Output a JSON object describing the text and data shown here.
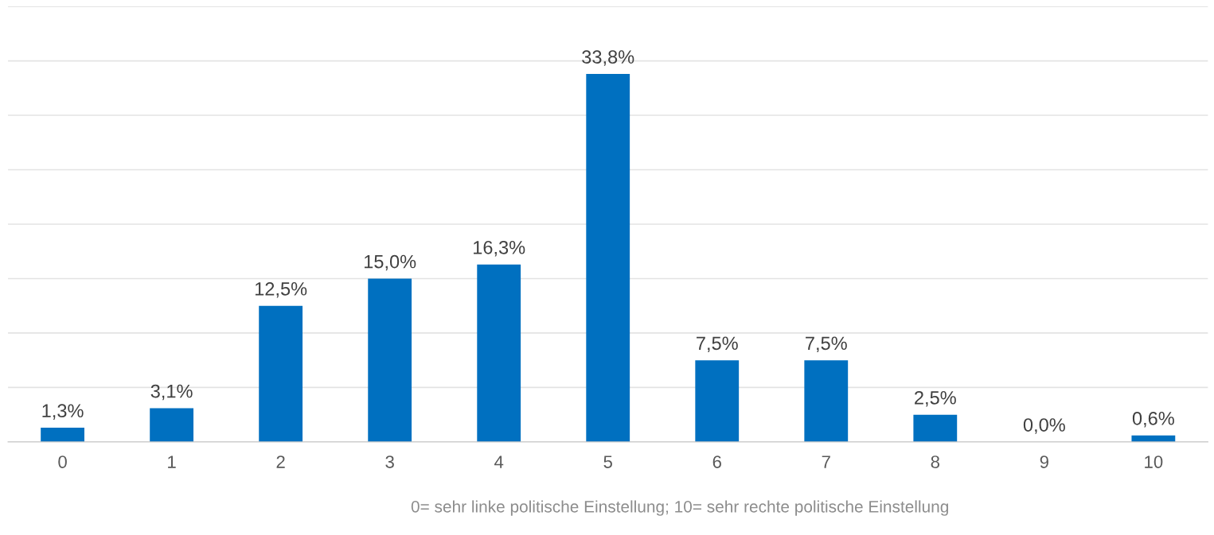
{
  "chart_data": {
    "type": "bar",
    "xlabel": "0= sehr linke politische Einstellung; 10= sehr rechte politische Einstellung",
    "categories": [
      "0",
      "1",
      "2",
      "3",
      "4",
      "5",
      "6",
      "7",
      "8",
      "9",
      "10"
    ],
    "values": [
      1.3,
      3.1,
      12.5,
      15.0,
      16.3,
      33.8,
      7.5,
      7.5,
      2.5,
      0.0,
      0.6
    ],
    "value_labels": [
      "1,3%",
      "3,1%",
      "12,5%",
      "15,0%",
      "16,3%",
      "33,8%",
      "7,5%",
      "7,5%",
      "2,5%",
      "0,0%",
      "0,6%"
    ],
    "color": "#0070c0",
    "ylim": [
      0,
      40
    ],
    "yticks": [
      {
        "value": 0,
        "label": null
      },
      {
        "value": 5,
        "label": null
      },
      {
        "value": 10,
        "label": null
      },
      {
        "value": 15,
        "label": null
      },
      {
        "value": 20,
        "label": null
      },
      {
        "value": 25,
        "label": null
      },
      {
        "value": 30,
        "label": null
      },
      {
        "value": 35,
        "label": null
      },
      {
        "value": 40,
        "label": null
      }
    ],
    "tick_labels": "x",
    "grid": "y",
    "legend": false
  }
}
